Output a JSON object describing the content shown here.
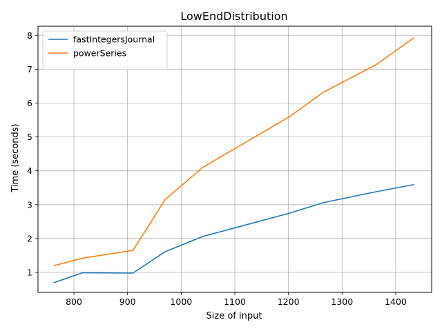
{
  "chart_data": {
    "type": "line",
    "title": "LowEndDistribution",
    "xlabel": "Size of input",
    "ylabel": "Time (seconds)",
    "xlim": [
      733,
      1467
    ],
    "ylim": [
      0.41,
      8.27
    ],
    "xticks": [
      800,
      900,
      1000,
      1100,
      1200,
      1300,
      1400
    ],
    "yticks": [
      1,
      2,
      3,
      4,
      5,
      6,
      7,
      8
    ],
    "grid": true,
    "legend_position": "upper-left",
    "series": [
      {
        "name": "fastIntegersJournal",
        "color": "#1f77b4",
        "x": [
          763,
          816,
          910,
          970,
          1040,
          1202,
          1265,
          1363,
          1433
        ],
        "y": [
          0.7,
          0.99,
          0.98,
          1.61,
          2.06,
          2.75,
          3.06,
          3.38,
          3.59
        ]
      },
      {
        "name": "powerSeries",
        "color": "#ff7f0e",
        "x": [
          763,
          816,
          910,
          970,
          1040,
          1202,
          1265,
          1363,
          1433
        ],
        "y": [
          1.2,
          1.42,
          1.65,
          3.15,
          4.1,
          5.6,
          6.32,
          7.13,
          7.92
        ]
      }
    ]
  }
}
